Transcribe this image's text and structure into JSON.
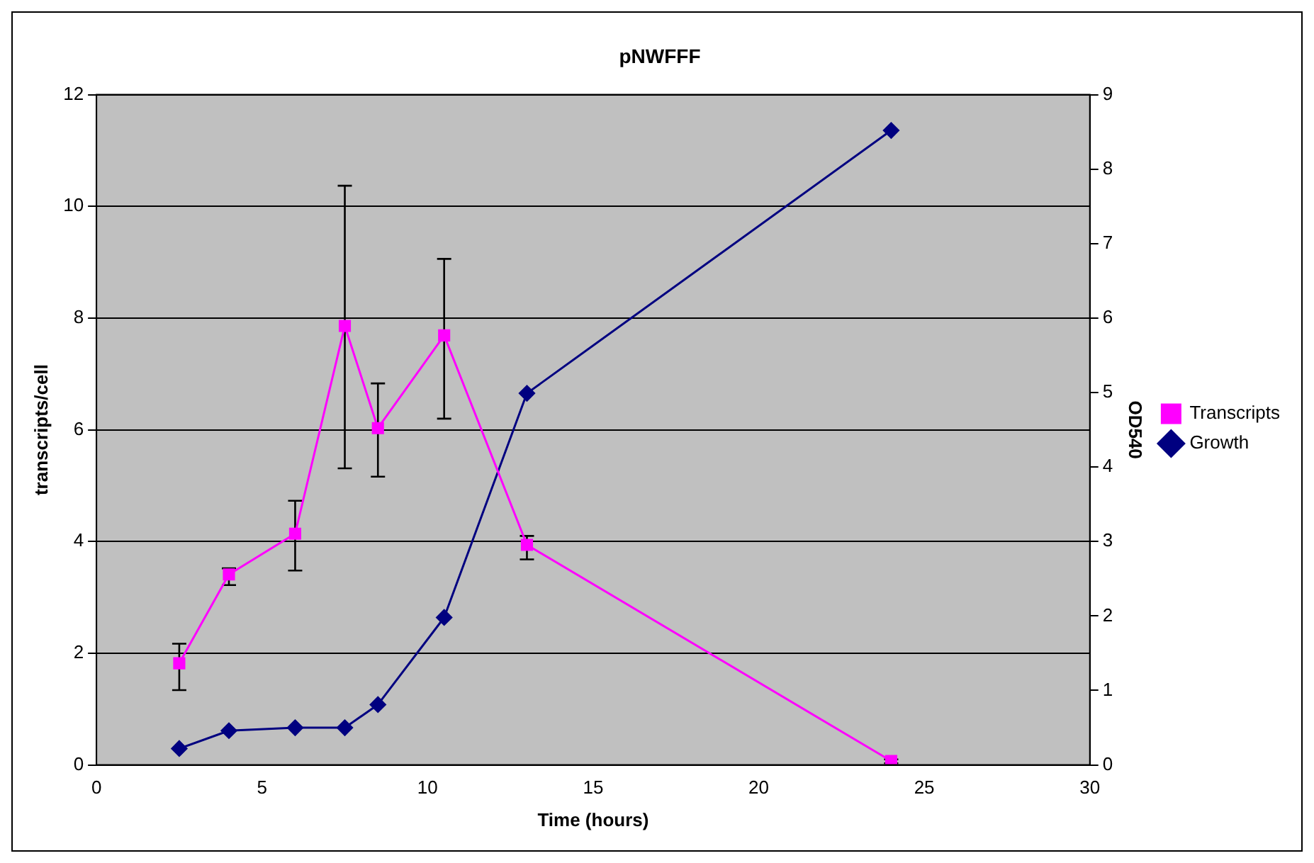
{
  "chart_data": {
    "type": "line",
    "title": "pNWFFF",
    "xlabel": "Time (hours)",
    "ylabel": "transcripts/cell",
    "y2label": "OD540",
    "x": [
      2.5,
      4,
      6,
      7.5,
      8.5,
      10.5,
      13,
      24
    ],
    "series": [
      {
        "name": "Transcripts",
        "color": "#ff00ff",
        "marker": "square",
        "values": [
          1.82,
          3.41,
          4.14,
          7.86,
          6.03,
          7.69,
          3.94,
          0.07
        ],
        "errors": [
          [
            1.34,
            2.17
          ],
          [
            3.22,
            3.52
          ],
          [
            3.48,
            4.73
          ],
          [
            5.31,
            10.37
          ],
          [
            5.16,
            6.83
          ],
          [
            6.2,
            9.06
          ],
          [
            3.68,
            4.1
          ],
          [
            0.03,
            0.1
          ]
        ]
      },
      {
        "name": "Growth",
        "color": "#000080",
        "marker": "diamond",
        "axis": "y2",
        "values": [
          0.22,
          0.46,
          0.5,
          0.5,
          0.81,
          1.98,
          4.99,
          8.52
        ]
      }
    ],
    "xlim": [
      0,
      30
    ],
    "xticks": [
      0,
      5,
      10,
      15,
      20,
      25,
      30
    ],
    "ylim": [
      0,
      12
    ],
    "yticks": [
      0,
      2,
      4,
      6,
      8,
      10,
      12
    ],
    "y2lim": [
      0,
      9
    ],
    "y2ticks": [
      0,
      1,
      2,
      3,
      4,
      5,
      6,
      7,
      8,
      9
    ],
    "grid": "y",
    "legend": "right",
    "line_style": "solid"
  }
}
